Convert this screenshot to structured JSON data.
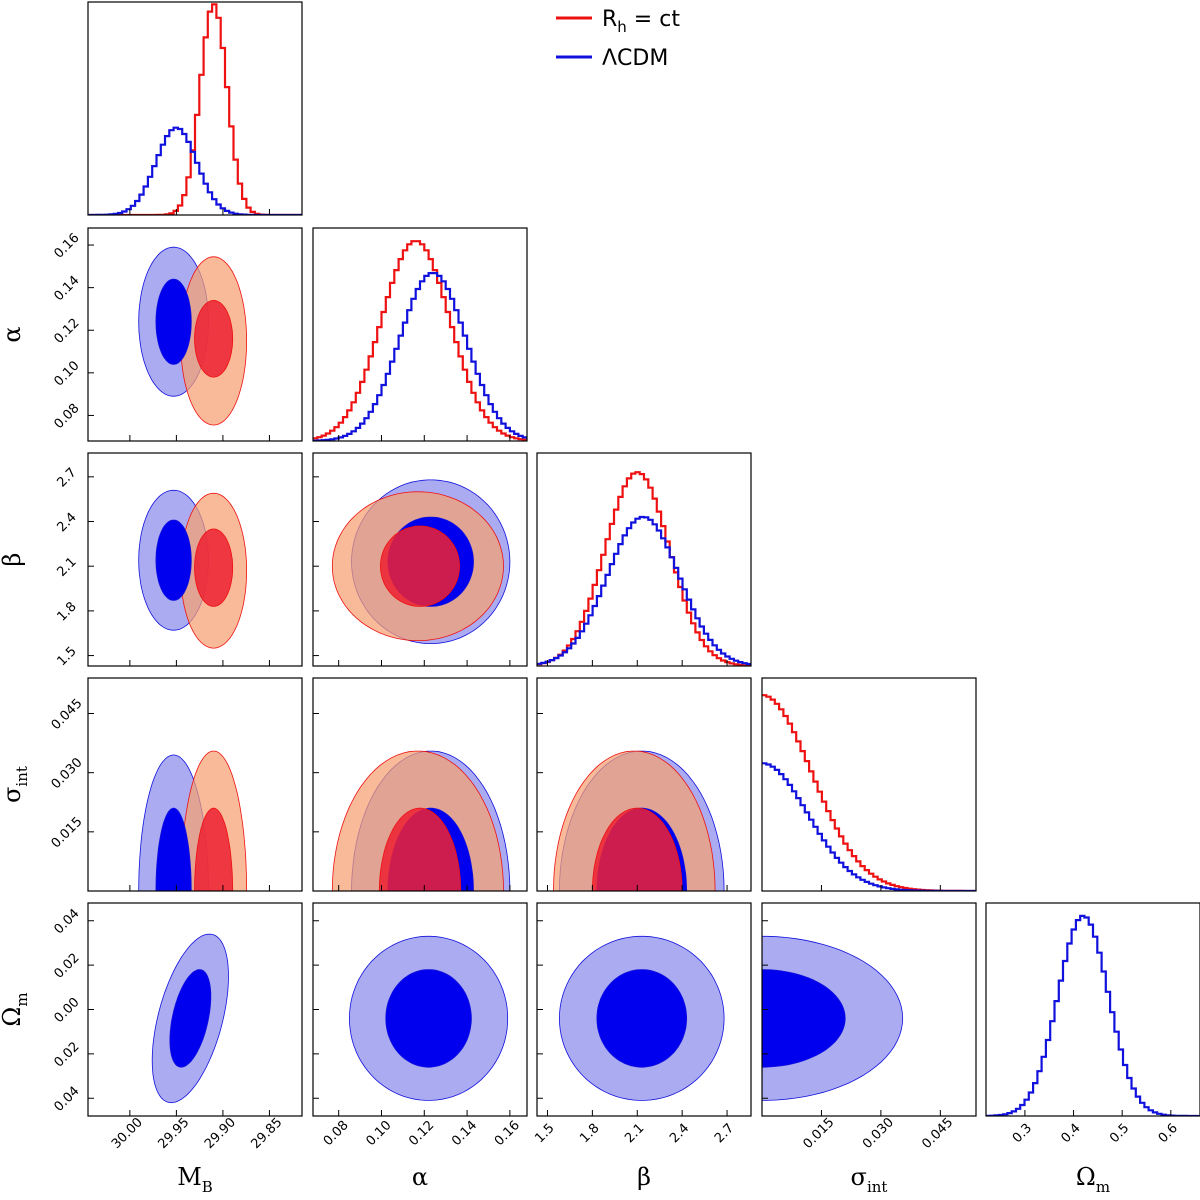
{
  "chart_data": {
    "type": "corner",
    "title": "",
    "legend": {
      "placement": "top-center",
      "entries": [
        {
          "name": "Rh",
          "label_main": "R",
          "label_sub": "h",
          "label_rest": " = ct",
          "color": "#ee1111"
        },
        {
          "name": "LCDM",
          "label_main": "ΛCDM",
          "label_sub": "",
          "label_rest": "",
          "color": "#1111dd"
        }
      ]
    },
    "colors": {
      "rh_line": "#ee1111",
      "lcdm_line": "#1111dd",
      "rh_inner": "#cc0030",
      "rh_inner_alt": "#ee2233",
      "rh_outer": "#f5a070",
      "lcdm_inner": "#0000ee",
      "lcdm_outer": "#9999ee"
    },
    "parameters": [
      {
        "name": "MB",
        "label_main": "M",
        "label_sub": "B",
        "range": [
          30.045,
          29.815
        ],
        "ticks": [
          "30.00",
          "29.95",
          "29.90",
          "29.85"
        ],
        "tick_values": [
          30.0,
          29.95,
          29.9,
          29.85
        ]
      },
      {
        "name": "alpha",
        "label_main": "α",
        "label_sub": "",
        "range": [
          0.068,
          0.168
        ],
        "ticks": [
          "0.08",
          "0.10",
          "0.12",
          "0.14",
          "0.16"
        ],
        "tick_values": [
          0.08,
          0.1,
          0.12,
          0.14,
          0.16
        ]
      },
      {
        "name": "beta",
        "label_main": "β",
        "label_sub": "",
        "range": [
          1.43,
          2.86
        ],
        "ticks": [
          "1.5",
          "1.8",
          "2.1",
          "2.4",
          "2.7"
        ],
        "tick_values": [
          1.5,
          1.8,
          2.1,
          2.4,
          2.7
        ]
      },
      {
        "name": "sigma_int",
        "label_main": "σ",
        "label_sub": "int",
        "range": [
          0.0,
          0.054
        ],
        "ticks": [
          "0.015",
          "0.030",
          "0.045"
        ],
        "tick_values": [
          0.015,
          0.03,
          0.045
        ]
      },
      {
        "name": "Omega_m",
        "label_main": "Ω",
        "label_sub": "m",
        "range": [
          0.22,
          0.66
        ],
        "ticks": [
          "0.3",
          "0.4",
          "0.5",
          "0.6"
        ],
        "tick_values": [
          0.3,
          0.4,
          0.5,
          0.6
        ]
      }
    ],
    "omega_m_2d_axis": {
      "ticks": [
        "0.04",
        "0.02",
        "0.00",
        "0.02",
        "0.04"
      ],
      "tick_values": [
        0.04,
        0.02,
        0.0,
        -0.02,
        -0.04
      ],
      "range": [
        0.048,
        -0.048
      ]
    },
    "marginals_1d": [
      {
        "param": "MB",
        "series": [
          {
            "model": "Rh",
            "mean": 29.91,
            "sigma": 0.0145,
            "peak": 0.99
          },
          {
            "model": "LCDM",
            "mean": 29.95,
            "sigma": 0.022,
            "peak": 0.41
          }
        ]
      },
      {
        "param": "alpha",
        "series": [
          {
            "model": "Rh",
            "mean": 0.116,
            "sigma": 0.016,
            "peak": 0.94
          },
          {
            "model": "LCDM",
            "mean": 0.124,
            "sigma": 0.0155,
            "peak": 0.79
          }
        ]
      },
      {
        "param": "beta",
        "series": [
          {
            "model": "Rh",
            "mean": 2.1,
            "sigma": 0.215,
            "peak": 0.91
          },
          {
            "model": "LCDM",
            "mean": 2.14,
            "sigma": 0.24,
            "peak": 0.7
          }
        ]
      },
      {
        "param": "sigma_int",
        "series": [
          {
            "model": "Rh",
            "type": "halfnormal",
            "scale": 0.0125,
            "peak": 0.92
          },
          {
            "model": "LCDM",
            "type": "halfnormal",
            "scale": 0.0115,
            "peak": 0.6
          }
        ]
      },
      {
        "param": "Omega_m",
        "series": [
          {
            "model": "LCDM",
            "mean": 0.42,
            "sigma": 0.052,
            "peak": 0.94
          }
        ]
      }
    ],
    "contours_2d": [
      {
        "x": "MB",
        "y": "alpha",
        "regions": [
          {
            "model": "LCDM",
            "cx": 29.953,
            "cy": 0.124,
            "sx": 0.0375,
            "sy": 0.035,
            "rho": 0.0,
            "level": "outer"
          },
          {
            "model": "Rh",
            "cx": 29.91,
            "cy": 0.115,
            "sx": 0.0355,
            "sy": 0.0395,
            "rho": 0.0,
            "level": "outer"
          },
          {
            "model": "LCDM",
            "cx": 29.953,
            "cy": 0.124,
            "sx": 0.019,
            "sy": 0.02,
            "rho": 0.0,
            "level": "inner"
          },
          {
            "model": "Rh",
            "cx": 29.91,
            "cy": 0.116,
            "sx": 0.0205,
            "sy": 0.018,
            "rho": 0.0,
            "level": "inner"
          }
        ]
      },
      {
        "x": "MB",
        "y": "beta",
        "regions": [
          {
            "model": "LCDM",
            "cx": 29.953,
            "cy": 2.14,
            "sx": 0.0375,
            "sy": 0.47,
            "rho": 0.0,
            "level": "outer"
          },
          {
            "model": "Rh",
            "cx": 29.91,
            "cy": 2.07,
            "sx": 0.0355,
            "sy": 0.52,
            "rho": 0.0,
            "level": "outer"
          },
          {
            "model": "LCDM",
            "cx": 29.953,
            "cy": 2.14,
            "sx": 0.019,
            "sy": 0.27,
            "rho": 0.0,
            "level": "inner"
          },
          {
            "model": "Rh",
            "cx": 29.91,
            "cy": 2.09,
            "sx": 0.0205,
            "sy": 0.26,
            "rho": 0.0,
            "level": "inner"
          }
        ]
      },
      {
        "x": "MB",
        "y": "sigma_int",
        "regions": [
          {
            "model": "LCDM",
            "cx": 29.953,
            "cy": 0.0,
            "sx": 0.0375,
            "sy": 0.0345,
            "rho": 0.0,
            "level": "outer"
          },
          {
            "model": "Rh",
            "cx": 29.91,
            "cy": 0.0,
            "sx": 0.0355,
            "sy": 0.0355,
            "rho": 0.0,
            "level": "outer"
          },
          {
            "model": "LCDM",
            "cx": 29.953,
            "cy": 0.0,
            "sx": 0.019,
            "sy": 0.021,
            "rho": 0.0,
            "level": "inner"
          },
          {
            "model": "Rh",
            "cx": 29.91,
            "cy": 0.0,
            "sx": 0.0205,
            "sy": 0.021,
            "rho": 0.0,
            "level": "inner"
          }
        ]
      },
      {
        "x": "MB",
        "y": "Omega_m",
        "regions": [
          {
            "model": "LCDM",
            "cx": 29.935,
            "cy": -0.004,
            "sx": 0.041,
            "sy": 0.038,
            "rho": -0.5,
            "level": "outer"
          },
          {
            "model": "LCDM",
            "cx": 29.935,
            "cy": -0.004,
            "sx": 0.022,
            "sy": 0.022,
            "rho": -0.45,
            "level": "inner"
          }
        ]
      },
      {
        "x": "alpha",
        "y": "beta",
        "regions": [
          {
            "model": "LCDM",
            "cx": 0.123,
            "cy": 2.13,
            "sx": 0.037,
            "sy": 0.55,
            "rho": 0.0,
            "level": "outer"
          },
          {
            "model": "Rh",
            "cx": 0.117,
            "cy": 2.1,
            "sx": 0.04,
            "sy": 0.5,
            "rho": 0.0,
            "level": "outer"
          },
          {
            "model": "LCDM",
            "cx": 0.123,
            "cy": 2.13,
            "sx": 0.02,
            "sy": 0.3,
            "rho": 0.0,
            "level": "inner"
          },
          {
            "model": "Rh",
            "cx": 0.118,
            "cy": 2.1,
            "sx": 0.0185,
            "sy": 0.27,
            "rho": 0.0,
            "level": "inner"
          }
        ]
      },
      {
        "x": "alpha",
        "y": "sigma_int",
        "regions": [
          {
            "model": "LCDM",
            "cx": 0.123,
            "cy": 0.0,
            "sx": 0.037,
            "sy": 0.0355,
            "rho": 0.0,
            "level": "outer"
          },
          {
            "model": "Rh",
            "cx": 0.117,
            "cy": 0.0,
            "sx": 0.04,
            "sy": 0.0355,
            "rho": 0.0,
            "level": "outer"
          },
          {
            "model": "LCDM",
            "cx": 0.123,
            "cy": 0.0,
            "sx": 0.02,
            "sy": 0.021,
            "rho": 0.0,
            "level": "inner"
          },
          {
            "model": "Rh",
            "cx": 0.118,
            "cy": 0.0,
            "sx": 0.019,
            "sy": 0.021,
            "rho": 0.0,
            "level": "inner"
          }
        ]
      },
      {
        "x": "alpha",
        "y": "Omega_m",
        "regions": [
          {
            "model": "LCDM",
            "cx": 0.122,
            "cy": -0.004,
            "sx": 0.037,
            "sy": 0.037,
            "rho": 0.0,
            "level": "outer"
          },
          {
            "model": "LCDM",
            "cx": 0.122,
            "cy": -0.004,
            "sx": 0.02,
            "sy": 0.022,
            "rho": 0.0,
            "level": "inner"
          }
        ]
      },
      {
        "x": "beta",
        "y": "sigma_int",
        "regions": [
          {
            "model": "LCDM",
            "cx": 2.13,
            "cy": 0.0,
            "sx": 0.55,
            "sy": 0.0355,
            "rho": 0.0,
            "level": "outer"
          },
          {
            "model": "Rh",
            "cx": 2.08,
            "cy": 0.0,
            "sx": 0.54,
            "sy": 0.0355,
            "rho": 0.0,
            "level": "outer"
          },
          {
            "model": "LCDM",
            "cx": 2.13,
            "cy": 0.0,
            "sx": 0.3,
            "sy": 0.021,
            "rho": 0.0,
            "level": "inner"
          },
          {
            "model": "Rh",
            "cx": 2.1,
            "cy": 0.0,
            "sx": 0.3,
            "sy": 0.021,
            "rho": 0.0,
            "level": "inner"
          }
        ]
      },
      {
        "x": "beta",
        "y": "Omega_m",
        "regions": [
          {
            "model": "LCDM",
            "cx": 2.13,
            "cy": -0.004,
            "sx": 0.55,
            "sy": 0.037,
            "rho": 0.0,
            "level": "outer"
          },
          {
            "model": "LCDM",
            "cx": 2.13,
            "cy": -0.004,
            "sx": 0.3,
            "sy": 0.022,
            "rho": 0.0,
            "level": "inner"
          }
        ]
      },
      {
        "x": "sigma_int",
        "y": "Omega_m",
        "regions": [
          {
            "model": "LCDM",
            "cx": 0.0,
            "cy": -0.004,
            "sx": 0.0355,
            "sy": 0.037,
            "rho": 0.0,
            "level": "outer"
          },
          {
            "model": "LCDM",
            "cx": 0.0,
            "cy": -0.004,
            "sx": 0.021,
            "sy": 0.022,
            "rho": 0.0,
            "level": "inner"
          }
        ]
      }
    ]
  }
}
